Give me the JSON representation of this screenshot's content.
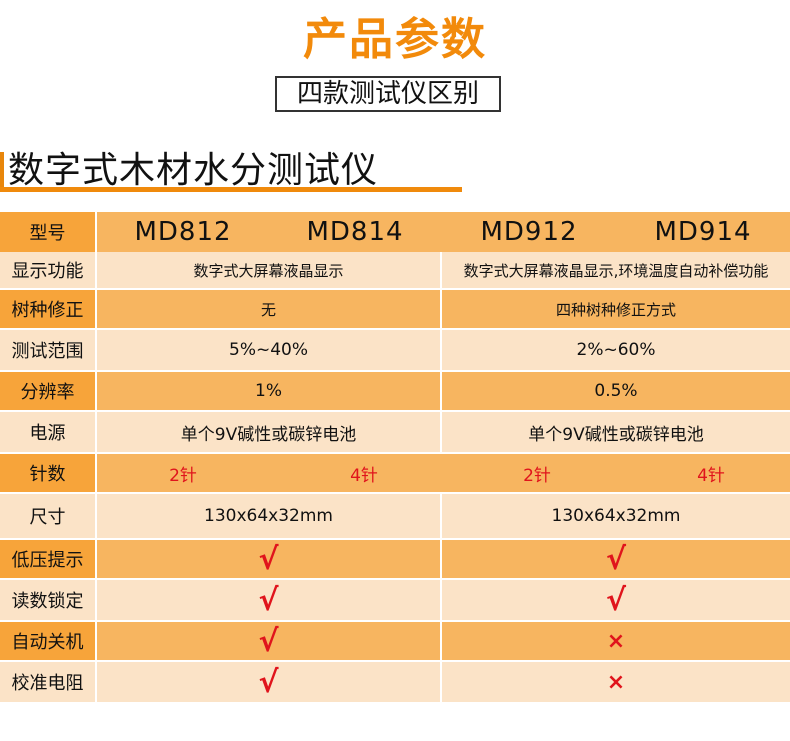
{
  "header": {
    "title": "产品参数",
    "subtitle": "四款测试仪区别",
    "section_title": "数字式木材水分测试仪"
  },
  "colors": {
    "accent": "#f28a0b",
    "row_dark": "#f7b560",
    "row_light": "#fbe3c7",
    "mark_red": "#e0141c"
  },
  "table": {
    "model_label": "型号",
    "models": [
      "MD812",
      "MD814",
      "MD912",
      "MD914"
    ],
    "rows": {
      "display": {
        "label": "显示功能",
        "left": "数字式大屏幕液晶显示",
        "right": "数字式大屏幕液晶显示,环境温度自动补偿功能"
      },
      "species": {
        "label": "树种修正",
        "left": "无",
        "right": "四种树种修正方式"
      },
      "range": {
        "label": "测试范围",
        "left": "5%~40%",
        "right": "2%~60%"
      },
      "resolution": {
        "label": "分辨率",
        "left": "1%",
        "right": "0.5%"
      },
      "power": {
        "label": "电源",
        "left": "单个9V碱性或碳锌电池",
        "right": "单个9V碱性或碳锌电池"
      },
      "pins": {
        "label": "针数",
        "v1": "2针",
        "v2": "4针",
        "v3": "2针",
        "v4": "4针"
      },
      "size": {
        "label": "尺寸",
        "left": "130x64x32mm",
        "right": "130x64x32mm"
      },
      "low_voltage": {
        "label": "低压提示",
        "left": "√",
        "right": "√"
      },
      "reading_lock": {
        "label": "读数锁定",
        "left": "√",
        "right": "√"
      },
      "auto_off": {
        "label": "自动关机",
        "left": "√",
        "right": "×"
      },
      "calib": {
        "label": "校准电阻",
        "left": "√",
        "right": "×"
      }
    }
  }
}
